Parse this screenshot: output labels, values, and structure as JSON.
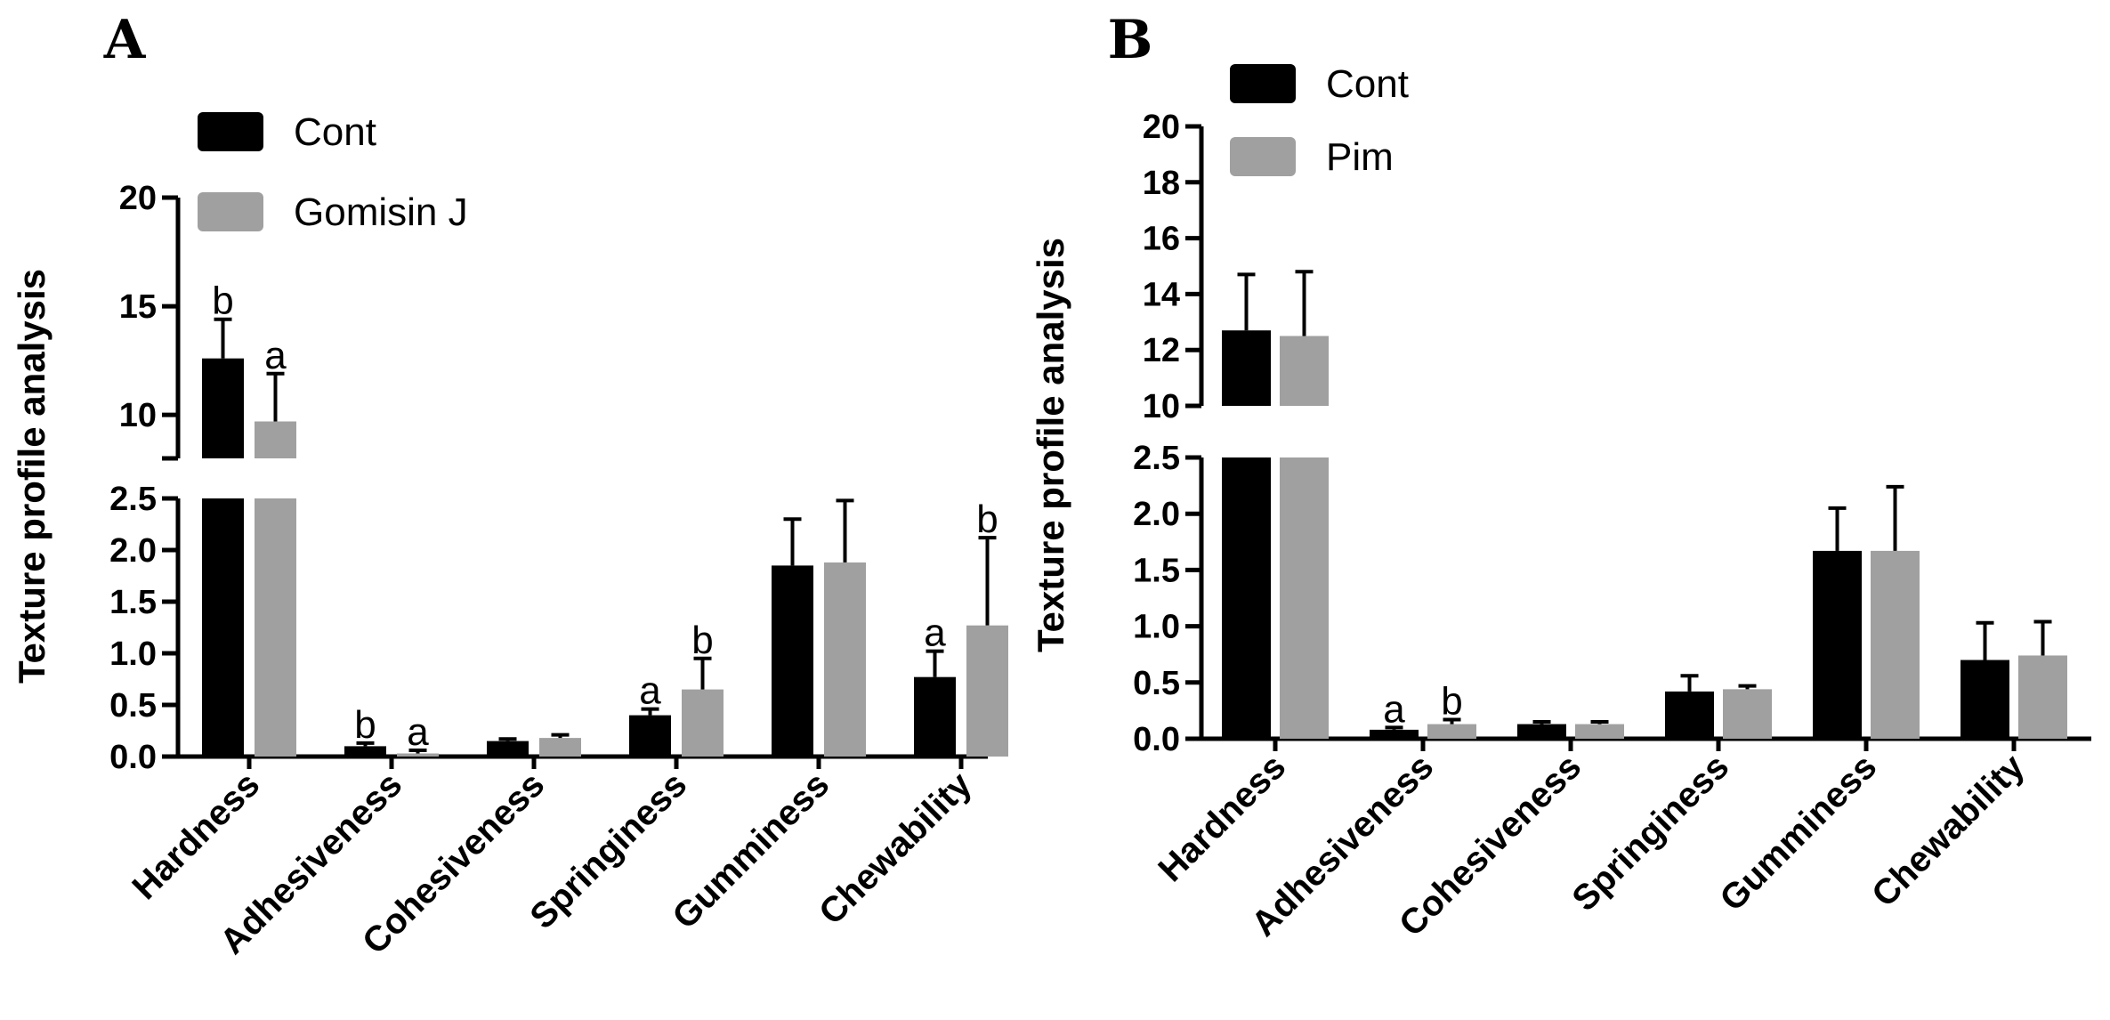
{
  "chart_data": [
    {
      "panel": "A",
      "type": "bar",
      "ylabel": "Texture profile analysis",
      "categories": [
        "Hardness",
        "Adhesiveness",
        "Cohesiveness",
        "Springiness",
        "Gumminess",
        "Chewability"
      ],
      "series": [
        {
          "name": "Cont",
          "color": "#000000",
          "values": [
            12.6,
            0.1,
            0.15,
            0.4,
            1.85,
            0.77
          ],
          "errors": [
            1.8,
            0.03,
            0.02,
            0.06,
            0.45,
            0.25
          ],
          "sig": [
            "b",
            "b",
            "",
            "a",
            "",
            "a"
          ]
        },
        {
          "name": "Gomisin J",
          "color": "#a0a0a0",
          "values": [
            9.7,
            0.03,
            0.18,
            0.65,
            1.88,
            1.27
          ],
          "errors": [
            2.2,
            0.03,
            0.03,
            0.3,
            0.6,
            0.85
          ],
          "sig": [
            "a",
            "a",
            "",
            "b",
            "",
            "b"
          ]
        }
      ],
      "lower_axis": {
        "range": [
          0,
          2.5
        ],
        "ticks": [
          "0.0",
          "0.5",
          "1.0",
          "1.5",
          "2.0",
          "2.5"
        ]
      },
      "upper_axis": {
        "range": [
          8,
          20
        ],
        "ticks": [
          "10",
          "15",
          "20"
        ]
      }
    },
    {
      "panel": "B",
      "type": "bar",
      "ylabel": "Texture profile analysis",
      "categories": [
        "Hardness",
        "Adhesiveness",
        "Cohesiveness",
        "Springiness",
        "Gumminess",
        "Chewability"
      ],
      "series": [
        {
          "name": "Cont",
          "color": "#000000",
          "values": [
            12.7,
            0.08,
            0.13,
            0.42,
            1.67,
            0.7
          ],
          "errors": [
            2.0,
            0.02,
            0.02,
            0.14,
            0.38,
            0.33
          ],
          "sig": [
            "",
            "a",
            "",
            "",
            "",
            ""
          ]
        },
        {
          "name": "Pim",
          "color": "#a0a0a0",
          "values": [
            12.5,
            0.13,
            0.13,
            0.44,
            1.67,
            0.74
          ],
          "errors": [
            2.3,
            0.04,
            0.02,
            0.03,
            0.57,
            0.3
          ],
          "sig": [
            "",
            "b",
            "",
            "",
            "",
            ""
          ]
        }
      ],
      "lower_axis": {
        "range": [
          0,
          2.5
        ],
        "ticks": [
          "0.0",
          "0.5",
          "1.0",
          "1.5",
          "2.0",
          "2.5"
        ]
      },
      "upper_axis": {
        "range": [
          10,
          20
        ],
        "ticks": [
          "10",
          "12",
          "14",
          "16",
          "18",
          "20"
        ]
      }
    }
  ]
}
